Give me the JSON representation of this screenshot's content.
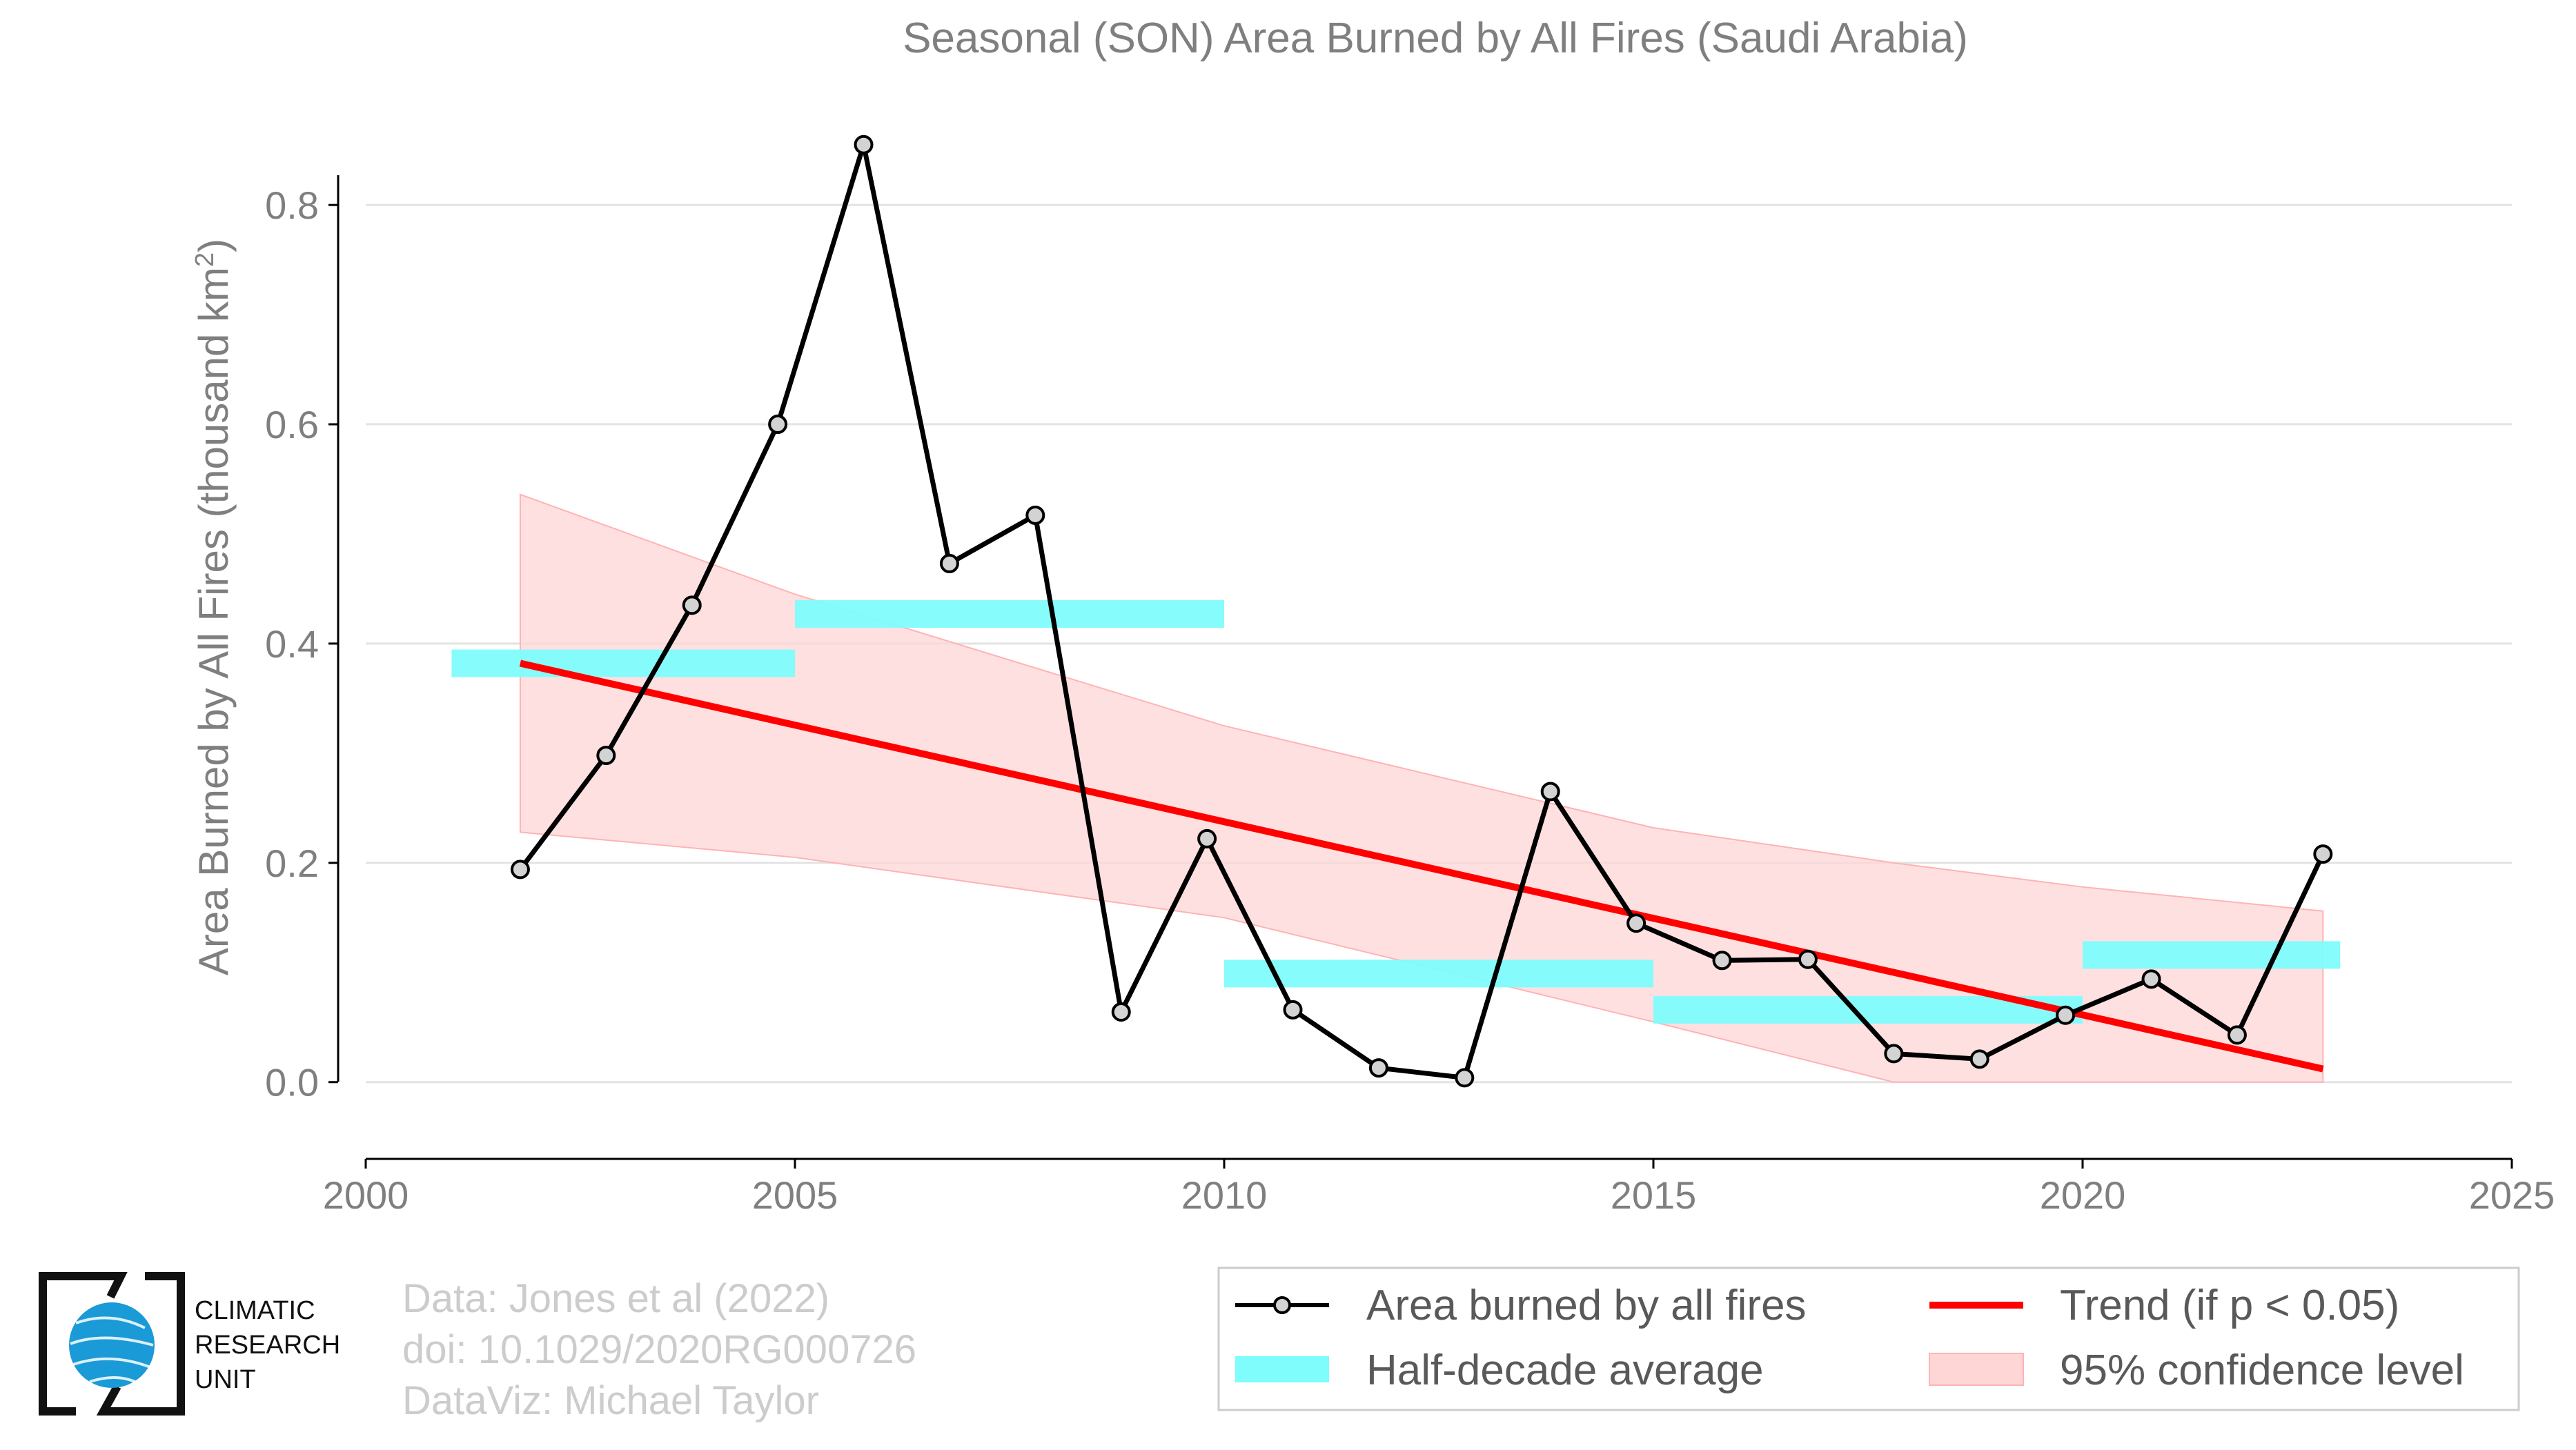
{
  "chart_data": {
    "type": "line",
    "title": "Seasonal (SON) Area Burned by All Fires (Saudi Arabia)",
    "ylabel": "Area Burned by All Fires (thousand km²)",
    "ylabel_main": "Area Burned by All Fires (thousand km",
    "ylabel_sup": "2",
    "ylabel_end": ")",
    "xlim": [
      2000,
      2025
    ],
    "ylim": [
      -0.07,
      0.88
    ],
    "x_ticks": [
      2000,
      2005,
      2010,
      2015,
      2020,
      2025
    ],
    "x_tick_labels": [
      "2000",
      "2005",
      "2010",
      "2015",
      "2020",
      "2025"
    ],
    "y_ticks": [
      0.0,
      0.2,
      0.4,
      0.6,
      0.8
    ],
    "y_tick_labels": [
      "0.0",
      "0.2",
      "0.4",
      "0.6",
      "0.8"
    ],
    "grid": "horizontal",
    "legend_position": "bottom-right",
    "series": [
      {
        "name": "Area burned by all fires",
        "color": "#000000",
        "x": [
          2001.8,
          2002.8,
          2003.8,
          2004.8,
          2005.8,
          2006.8,
          2007.8,
          2008.8,
          2009.8,
          2010.8,
          2011.8,
          2012.8,
          2013.8,
          2014.8,
          2015.8,
          2016.8,
          2017.8,
          2018.8,
          2019.8,
          2020.8,
          2021.8,
          2022.8
        ],
        "y": [
          0.194,
          0.298,
          0.435,
          0.6,
          0.855,
          0.473,
          0.517,
          0.064,
          0.222,
          0.066,
          0.013,
          0.004,
          0.265,
          0.145,
          0.111,
          0.112,
          0.026,
          0.021,
          0.061,
          0.094,
          0.043,
          0.208
        ]
      }
    ],
    "half_decade_average": {
      "name": "Half-decade average",
      "color": "#7ffcfc",
      "segments": [
        {
          "x0": 2001.0,
          "x1": 2005.0,
          "y": 0.382
        },
        {
          "x0": 2005.0,
          "x1": 2010.0,
          "y": 0.427
        },
        {
          "x0": 2010.0,
          "x1": 2015.0,
          "y": 0.099
        },
        {
          "x0": 2015.0,
          "x1": 2020.0,
          "y": 0.066
        },
        {
          "x0": 2020.0,
          "x1": 2023.0,
          "y": 0.116
        }
      ]
    },
    "trend": {
      "name": "Trend (if p < 0.05)",
      "color": "#ff0000",
      "x": [
        2001.8,
        2022.8
      ],
      "y": [
        0.382,
        0.012
      ]
    },
    "confidence": {
      "name": "95% confidence level",
      "color": "#ffd6d6",
      "x": [
        2001.8,
        2005.0,
        2010.0,
        2015.0,
        2017.8,
        2020.0,
        2022.8
      ],
      "upper": [
        0.536,
        0.445,
        0.325,
        0.232,
        0.2,
        0.178,
        0.156
      ],
      "lower": [
        0.228,
        0.205,
        0.15,
        0.055,
        0.0,
        0.0,
        0.0
      ]
    }
  },
  "legend": {
    "items": [
      {
        "label": "Area burned by all fires"
      },
      {
        "label": "Half-decade average"
      },
      {
        "label": "Trend (if p < 0.05)"
      },
      {
        "label": "95% confidence level"
      }
    ]
  },
  "credits": {
    "line1": "Data: Jones et al (2022)",
    "line2": "doi: 10.1029/2020RG000726",
    "line3": "DataViz: Michael Taylor"
  },
  "logo": {
    "line1": "CLIMATIC",
    "line2": "RESEARCH",
    "line3": "UNIT",
    "color": "#1a9ad6"
  }
}
